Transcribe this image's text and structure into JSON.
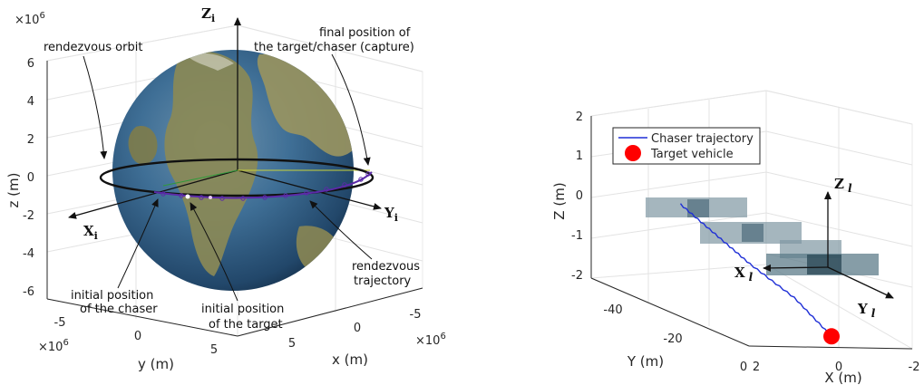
{
  "chart_data": [
    {
      "type": "3d-orbit",
      "sci_exponent_label": "×10",
      "sci_exponent": "6",
      "axes": {
        "z": {
          "label": "z (m)",
          "ticks": [
            "6",
            "4",
            "2",
            "0",
            "-2",
            "-4",
            "-6"
          ]
        },
        "y": {
          "label": "y (m)",
          "ticks": [
            "-5",
            "0",
            "5"
          ]
        },
        "x": {
          "label": "x (m)",
          "ticks": [
            "-5",
            "0",
            "5"
          ]
        }
      },
      "frame_labels": {
        "zi": "Z",
        "yi": "Y",
        "xi": "X",
        "sub": "i"
      },
      "annotations": {
        "rendezvous_orbit": "rendezvous orbit",
        "final_pos_1": "final position of",
        "final_pos_2": "the target/chaser (capture)",
        "rendezvous_traj_1": "rendezvous",
        "rendezvous_traj_2": "trajectory",
        "init_chaser_1": "initial position",
        "init_chaser_2": "of the chaser",
        "init_target_1": "initial position",
        "init_target_2": "of the target"
      },
      "colors": {
        "orbit": "#111111",
        "trajectory": "#5b2aa8",
        "earth_ocean": "#2e5f8a",
        "earth_land": "#8c8a55"
      }
    },
    {
      "type": "3d-line",
      "axes": {
        "z": {
          "label": "Z (m)",
          "ticks": [
            "2",
            "1",
            "0",
            "-1",
            "-2"
          ],
          "lim": [
            -2,
            2
          ]
        },
        "y": {
          "label": "Y (m)",
          "ticks": [
            "-40",
            "-20",
            "0"
          ],
          "lim": [
            -50,
            0
          ]
        },
        "x": {
          "label": "X (m)",
          "ticks": [
            "2",
            "0",
            "-2"
          ],
          "lim": [
            -2,
            2
          ]
        }
      },
      "legend": {
        "placement": "top-left",
        "entries": [
          {
            "name": "Chaser trajectory",
            "color": "#1f2fd6",
            "marker": "line"
          },
          {
            "name": "Target vehicle",
            "color": "#ff0000",
            "marker": "circle"
          }
        ]
      },
      "frame_labels": {
        "zl": "Z",
        "yl": "Y",
        "xl": "X",
        "sub": "l"
      },
      "series": [
        {
          "name": "Chaser trajectory",
          "x": [
            0.1,
            0.05,
            0.0,
            -0.05,
            0.0
          ],
          "y": [
            -45,
            -35,
            -25,
            -12,
            0
          ],
          "z": [
            0.0,
            -0.4,
            -0.8,
            -1.2,
            -1.75
          ]
        }
      ],
      "target": {
        "x": 0,
        "y": 0,
        "z": -1.75
      }
    }
  ]
}
